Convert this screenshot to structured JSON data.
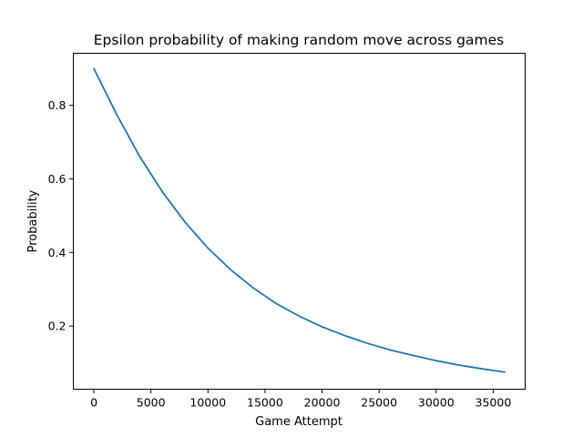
{
  "chart_data": {
    "type": "line",
    "title": "Epsilon probability of making random move across games",
    "xlabel": "Game Attempt",
    "ylabel": "Probability",
    "xlim": [
      -1800,
      37800
    ],
    "ylim": [
      0.0285,
      0.9415
    ],
    "xticks": [
      0,
      5000,
      10000,
      15000,
      20000,
      25000,
      30000,
      35000
    ],
    "xtick_labels": [
      "0",
      "5000",
      "10000",
      "15000",
      "20000",
      "25000",
      "30000",
      "35000"
    ],
    "yticks": [
      0.2,
      0.4,
      0.6,
      0.8
    ],
    "ytick_labels": [
      "0.2",
      "0.4",
      "0.6",
      "0.8"
    ],
    "grid": false,
    "legend": "none",
    "series": [
      {
        "color": "#1f77b4",
        "x": [
          0,
          2000,
          4000,
          6000,
          8000,
          10000,
          12000,
          14000,
          16000,
          18000,
          20000,
          22000,
          24000,
          26000,
          28000,
          30000,
          32000,
          34000,
          36000
        ],
        "y": [
          0.9,
          0.775,
          0.662,
          0.565,
          0.482,
          0.412,
          0.353,
          0.303,
          0.261,
          0.227,
          0.198,
          0.174,
          0.153,
          0.135,
          0.12,
          0.106,
          0.094,
          0.084,
          0.075
        ]
      }
    ]
  }
}
